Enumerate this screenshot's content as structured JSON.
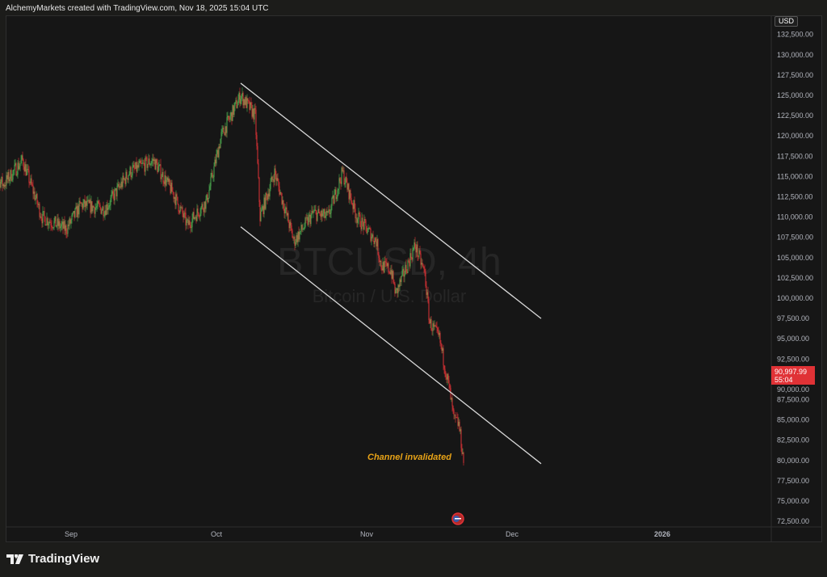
{
  "header": {
    "credit": "AlchemyMarkets created with TradingView.com, Nov 18, 2025 15:04 UTC"
  },
  "footer": {
    "brand": "TradingView"
  },
  "price_axis": {
    "currency": "USD",
    "last_price": "90,997.99",
    "countdown": "55:04",
    "last_price_color": "#e03236"
  },
  "watermark": {
    "symbol": "BTCUSD, 4h",
    "description": "Bitcoin / U.S. Dollar"
  },
  "annotation": {
    "text": "Channel invalidated",
    "color": "#e8a317"
  },
  "colors": {
    "up": "#4caf50",
    "down": "#e03236",
    "background": "#161616",
    "channel": "#d9d9d9"
  },
  "chart_data": {
    "type": "candlestick",
    "symbol": "BTCUSD",
    "interval": "4h",
    "yticks": [
      "72,500.00",
      "75,000.00",
      "77,500.00",
      "80,000.00",
      "82,500.00",
      "85,000.00",
      "87,500.00",
      "90,000.00",
      "92,500.00",
      "95,000.00",
      "97,500.00",
      "100,000.00",
      "102,500.00",
      "105,000.00",
      "107,500.00",
      "110,000.00",
      "112,500.00",
      "115,000.00",
      "117,500.00",
      "120,000.00",
      "122,500.00",
      "125,000.00",
      "127,500.00",
      "130,000.00",
      "132,500.00"
    ],
    "xticks": [
      {
        "label": "Sep",
        "date": "2025-09-01"
      },
      {
        "label": "Oct",
        "date": "2025-10-01"
      },
      {
        "label": "Nov",
        "date": "2025-11-01"
      },
      {
        "label": "Dec",
        "date": "2025-12-01"
      },
      {
        "label": "2026",
        "date": "2026-01-01",
        "bold": true
      }
    ],
    "ylim": [
      72000,
      133000
    ],
    "price_path": [
      [
        "2025-08-15",
        116000
      ],
      [
        "2025-08-18",
        114000
      ],
      [
        "2025-08-22",
        117000
      ],
      [
        "2025-08-26",
        110000
      ],
      [
        "2025-08-31",
        108500
      ],
      [
        "2025-09-03",
        111500
      ],
      [
        "2025-09-08",
        111000
      ],
      [
        "2025-09-13",
        115500
      ],
      [
        "2025-09-18",
        117000
      ],
      [
        "2025-09-22",
        113000
      ],
      [
        "2025-09-25",
        109000
      ],
      [
        "2025-09-29",
        112000
      ],
      [
        "2025-10-02",
        120000
      ],
      [
        "2025-10-06",
        125000
      ],
      [
        "2025-10-09",
        122500
      ],
      [
        "2025-10-10",
        110000
      ],
      [
        "2025-10-13",
        115500
      ],
      [
        "2025-10-17",
        107000
      ],
      [
        "2025-10-21",
        110500
      ],
      [
        "2025-10-24",
        110000
      ],
      [
        "2025-10-27",
        115500
      ],
      [
        "2025-10-30",
        110000
      ],
      [
        "2025-11-03",
        107000
      ],
      [
        "2025-11-04",
        104000
      ],
      [
        "2025-11-06",
        103500
      ],
      [
        "2025-11-07",
        100500
      ],
      [
        "2025-11-09",
        103500
      ],
      [
        "2025-11-11",
        106500
      ],
      [
        "2025-11-13",
        103000
      ],
      [
        "2025-11-14",
        97000
      ],
      [
        "2025-11-16",
        95000
      ],
      [
        "2025-11-17",
        92000
      ],
      [
        "2025-11-18",
        89000
      ],
      [
        "2025-11-19",
        85000
      ],
      [
        "2025-11-20",
        84500
      ],
      [
        "2025-11-21",
        80000
      ]
    ],
    "channel": {
      "upper": [
        [
          "2025-10-06",
          126500
        ],
        [
          "2025-12-07",
          97500
        ]
      ],
      "lower": [
        [
          "2025-10-06",
          108800
        ],
        [
          "2025-12-07",
          79600
        ]
      ]
    }
  }
}
